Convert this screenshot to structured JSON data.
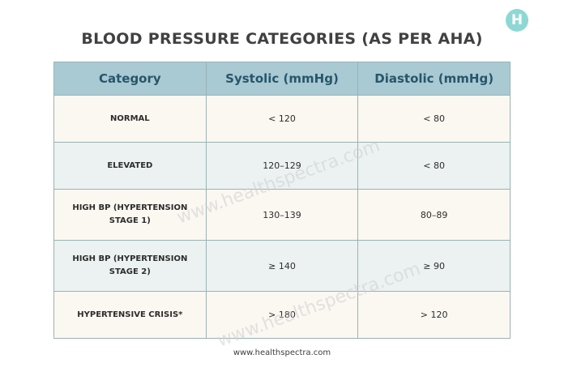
{
  "logo": {
    "letter": "H"
  },
  "title": "BLOOD PRESSURE CATEGORIES (AS PER AHA)",
  "table": {
    "headers": [
      "Category",
      "Systolic (mmHg)",
      "Diastolic (mmHg)"
    ],
    "rows": [
      {
        "category": "NORMAL",
        "systolic": "< 120",
        "diastolic": "< 80"
      },
      {
        "category": "ELEVATED",
        "systolic": "120–129",
        "diastolic": "< 80"
      },
      {
        "category": "HIGH BP (HYPERTENSION STAGE 1)",
        "systolic": "130–139",
        "diastolic": "80–89"
      },
      {
        "category": "HIGH BP (HYPERTENSION STAGE 2)",
        "systolic": "≥ 140",
        "diastolic": "≥ 90"
      },
      {
        "category": "HYPERTENSIVE CRISIS*",
        "systolic": "> 180",
        "diastolic": "> 120"
      }
    ]
  },
  "watermark": {
    "text": "www.healthspectra.com"
  },
  "footer": {
    "url": "www.healthspectra.com"
  },
  "colors": {
    "header_bg": "#a9c9d3",
    "header_text": "#27566a",
    "row_light": "#fbf7f1",
    "row_tint": "#ebf2f1",
    "logo": "#8ed8d4"
  }
}
